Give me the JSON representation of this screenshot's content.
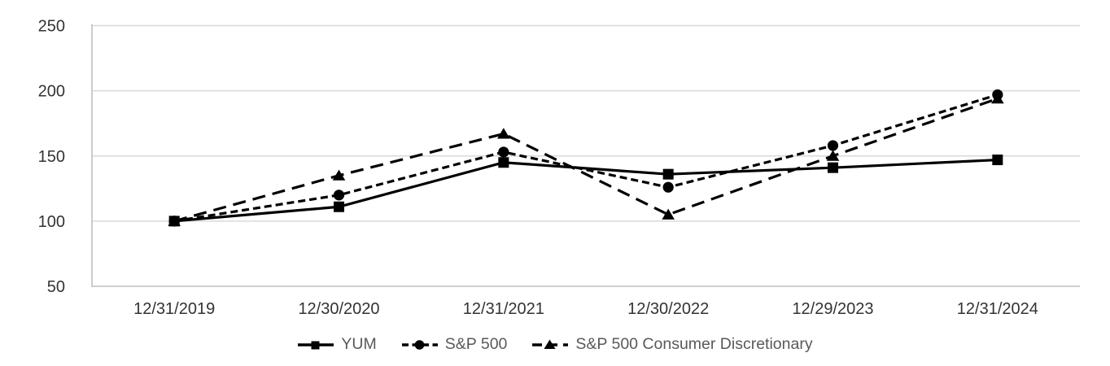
{
  "chart_data": {
    "type": "line",
    "title": "",
    "xlabel": "",
    "ylabel": "",
    "categories": [
      "12/31/2019",
      "12/30/2020",
      "12/31/2021",
      "12/30/2022",
      "12/29/2023",
      "12/31/2024"
    ],
    "series": [
      {
        "name": "YUM",
        "marker": "square",
        "dash": "solid",
        "values": [
          100,
          111,
          145,
          136,
          141,
          147
        ]
      },
      {
        "name": "S&P 500",
        "marker": "circle",
        "dash": "short-dash",
        "values": [
          100,
          120,
          153,
          126,
          158,
          197
        ]
      },
      {
        "name": "S&P 500 Consumer Discretionary",
        "marker": "triangle",
        "dash": "long-dash",
        "values": [
          100,
          135,
          167,
          105,
          150,
          194
        ]
      }
    ],
    "ylim": [
      50,
      250
    ],
    "yticks": [
      50,
      100,
      150,
      200,
      250
    ],
    "grid": true,
    "legend_position": "bottom",
    "colors": {
      "line": "#000000",
      "grid": "#d9d9d9",
      "axis": "#bfbfbf",
      "tick_label": "#333333",
      "legend_text": "#595959"
    }
  }
}
